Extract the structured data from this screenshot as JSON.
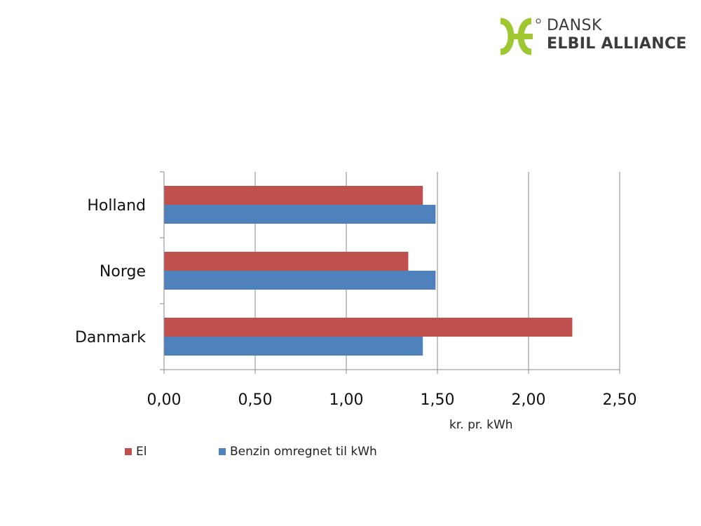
{
  "logo": {
    "line1": "DANSK",
    "line2": "ELBIL ALLIANCE",
    "mark_color": "#9ec732",
    "registered_mark": "®"
  },
  "chart_data": {
    "type": "bar",
    "orientation": "horizontal",
    "categories": [
      "Holland",
      "Norge",
      "Danmark"
    ],
    "series": [
      {
        "name": "El",
        "color": "#c0504d",
        "values": [
          1.42,
          1.34,
          2.24
        ]
      },
      {
        "name": "Benzin omregnet til kWh",
        "color": "#4f81bd",
        "values": [
          1.49,
          1.49,
          1.42
        ]
      }
    ],
    "xlabel": "kr. pr. kWh",
    "ylabel": "",
    "xlim": [
      0,
      2.5
    ],
    "xticks": [
      "0,00",
      "0,50",
      "1,00",
      "1,50",
      "2,00",
      "2,50"
    ],
    "grid": "vertical",
    "legend": "bottom-left"
  }
}
